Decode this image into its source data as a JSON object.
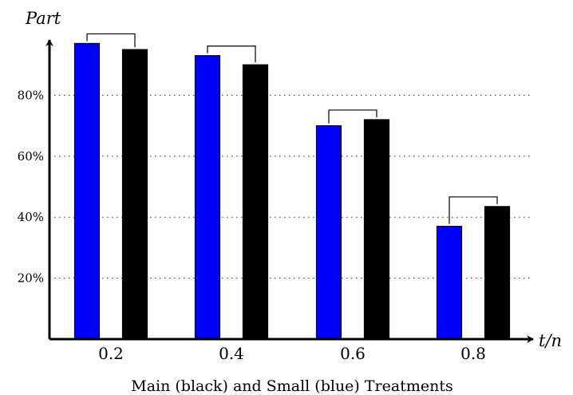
{
  "chart_data": {
    "type": "bar",
    "categories": [
      "0.2",
      "0.4",
      "0.6",
      "0.8"
    ],
    "series": [
      {
        "color": "#0000ff",
        "values": [
          0.97,
          0.93,
          0.7,
          0.37
        ]
      },
      {
        "color": "#000000",
        "values": [
          0.95,
          0.9,
          0.72,
          0.435
        ]
      }
    ],
    "ylabel": "Part",
    "xlabel": "t/n",
    "caption": "Main (black) and Small (blue) Treatments",
    "yticks": [
      "20%",
      "40%",
      "60%",
      "80%"
    ],
    "ylim": [
      0,
      1
    ],
    "grid": "horizontal dotted",
    "brackets": true
  }
}
